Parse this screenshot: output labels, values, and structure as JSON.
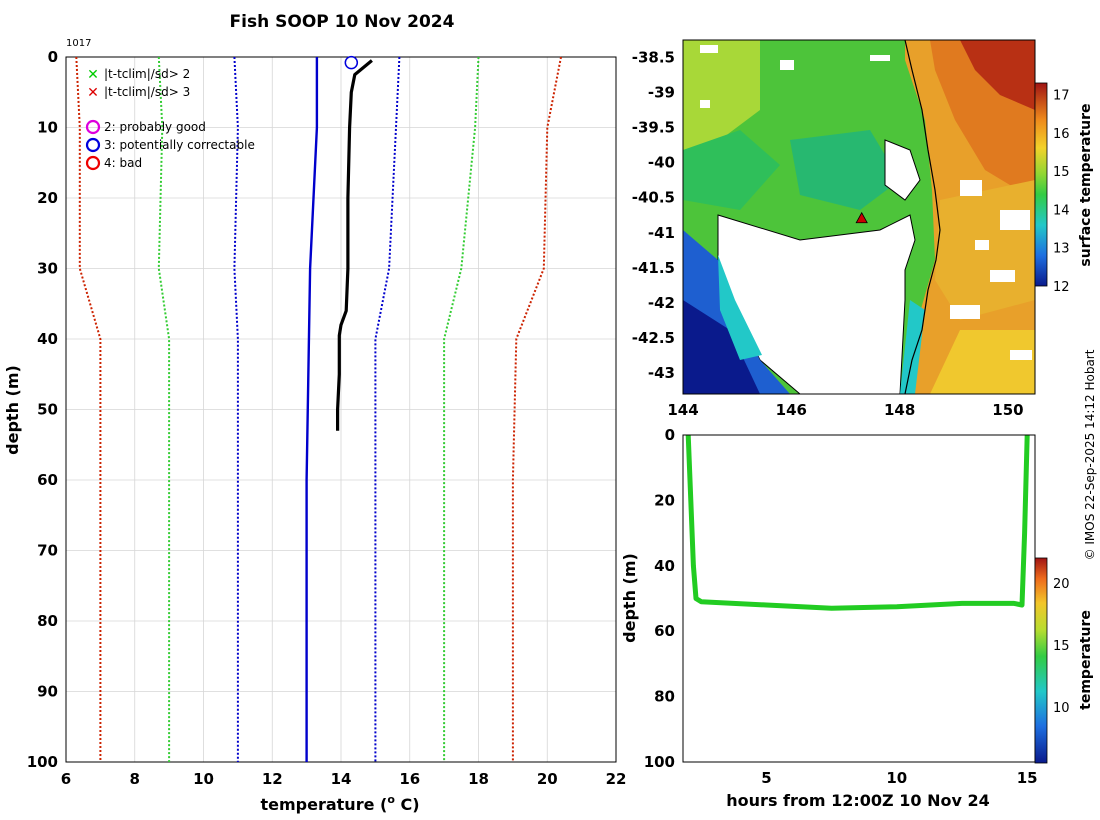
{
  "chart_data": [
    {
      "type": "line",
      "title": "Fish SOOP 10 Nov 2024",
      "id_label": "1017",
      "xlabel": "temperature (",
      "xlabel_sup": "o",
      "xlabel_unit": " C)",
      "ylabel": "depth (m)",
      "xlim": [
        6,
        22
      ],
      "ylim": [
        0,
        100
      ],
      "y_inverted": true,
      "xticks": [
        6,
        8,
        10,
        12,
        14,
        16,
        18,
        20,
        22
      ],
      "yticks": [
        0,
        10,
        20,
        30,
        40,
        50,
        60,
        70,
        80,
        90,
        100
      ],
      "grid": true,
      "legend_position": "top-left",
      "legend": [
        {
          "symbol": "x",
          "color": "#00cc00",
          "label": "|t-tclim|/sd> 2"
        },
        {
          "symbol": "x",
          "color": "#dd0000",
          "label": "|t-tclim|/sd> 3"
        },
        {
          "symbol": "o",
          "color": "#dd00dd",
          "label": "2: probably good"
        },
        {
          "symbol": "o",
          "color": "#0000dd",
          "label": "3: potentially correctable"
        },
        {
          "symbol": "o",
          "color": "#ee0000",
          "label": "4: bad"
        }
      ],
      "series": [
        {
          "name": "clim -3sd",
          "color": "#cc2200",
          "style": "dotted",
          "points": [
            [
              6.3,
              0
            ],
            [
              6.4,
              10
            ],
            [
              6.4,
              30
            ],
            [
              7.0,
              40
            ],
            [
              7.0,
              60
            ],
            [
              7.0,
              100
            ]
          ]
        },
        {
          "name": "clim -2sd",
          "color": "#33cc33",
          "style": "dotted",
          "points": [
            [
              8.7,
              0
            ],
            [
              8.8,
              10
            ],
            [
              8.7,
              30
            ],
            [
              9.0,
              40
            ],
            [
              9.0,
              60
            ],
            [
              9.0,
              100
            ]
          ]
        },
        {
          "name": "clim -1sd",
          "color": "#0000cc",
          "style": "dotted",
          "points": [
            [
              10.9,
              0
            ],
            [
              11.0,
              10
            ],
            [
              10.9,
              30
            ],
            [
              11.0,
              40
            ],
            [
              11.0,
              60
            ],
            [
              11.0,
              100
            ]
          ]
        },
        {
          "name": "clim mean",
          "color": "#0000cc",
          "style": "solid",
          "points": [
            [
              13.3,
              0
            ],
            [
              13.3,
              10
            ],
            [
              13.1,
              30
            ],
            [
              13.0,
              60
            ],
            [
              13.0,
              100
            ]
          ]
        },
        {
          "name": "clim +1sd",
          "color": "#0000cc",
          "style": "dotted",
          "points": [
            [
              15.7,
              0
            ],
            [
              15.6,
              10
            ],
            [
              15.4,
              30
            ],
            [
              15.0,
              40
            ],
            [
              15.0,
              60
            ],
            [
              15.0,
              100
            ]
          ]
        },
        {
          "name": "clim +2sd",
          "color": "#33cc33",
          "style": "dotted",
          "points": [
            [
              18.0,
              0
            ],
            [
              17.9,
              10
            ],
            [
              17.5,
              30
            ],
            [
              17.0,
              40
            ],
            [
              17.0,
              60
            ],
            [
              17.0,
              100
            ]
          ]
        },
        {
          "name": "clim +3sd",
          "color": "#cc2200",
          "style": "dotted",
          "points": [
            [
              20.4,
              0
            ],
            [
              20.0,
              10
            ],
            [
              19.9,
              30
            ],
            [
              19.1,
              40
            ],
            [
              19.0,
              60
            ],
            [
              19.0,
              100
            ]
          ]
        },
        {
          "name": "profile",
          "color": "#000000",
          "style": "solid",
          "points": [
            [
              14.9,
              0.5
            ],
            [
              14.4,
              2.5
            ],
            [
              14.3,
              5
            ],
            [
              14.25,
              10
            ],
            [
              14.2,
              20
            ],
            [
              14.2,
              30
            ],
            [
              14.15,
              36
            ],
            [
              14.0,
              38
            ],
            [
              13.95,
              39.5
            ],
            [
              13.95,
              45
            ],
            [
              13.9,
              50
            ],
            [
              13.9,
              53
            ]
          ]
        }
      ],
      "flag_point": {
        "temperature": 14.3,
        "depth": 0.8,
        "flag": "3: potentially correctable"
      }
    },
    {
      "type": "heatmap",
      "title": "",
      "xlim": [
        144,
        150.5
      ],
      "ylim": [
        -43.3,
        -38.25
      ],
      "xticks": [
        144,
        146,
        148,
        150
      ],
      "yticks": [
        -38.5,
        -39,
        -39.5,
        -40,
        -40.5,
        -41,
        -41.5,
        -42,
        -42.5,
        -43
      ],
      "colorbar": {
        "label": "surface temperature",
        "ticks": [
          12,
          13,
          14,
          15,
          16,
          17
        ],
        "range": [
          12,
          17.3
        ]
      },
      "marker": {
        "lon": 147.3,
        "lat": -40.8,
        "symbol": "triangle",
        "color": "#cc0000"
      }
    },
    {
      "type": "heatmap",
      "title": "",
      "xlabel": "hours from 12:00Z 10 Nov 24",
      "ylabel": "depth (m)",
      "xlim": [
        1.8,
        15.3
      ],
      "ylim": [
        0,
        100
      ],
      "y_inverted": true,
      "xticks": [
        5,
        10,
        15
      ],
      "yticks": [
        0,
        20,
        40,
        60,
        80,
        100
      ],
      "colorbar": {
        "label": "temperature",
        "ticks": [
          10,
          15,
          20
        ],
        "range": [
          5.5,
          22
        ]
      },
      "track": [
        [
          2.0,
          0
        ],
        [
          2.1,
          20
        ],
        [
          2.2,
          40
        ],
        [
          2.3,
          50
        ],
        [
          2.5,
          51
        ],
        [
          5,
          52
        ],
        [
          7.5,
          53
        ],
        [
          10,
          52.5
        ],
        [
          12.5,
          51.5
        ],
        [
          14.5,
          51.5
        ],
        [
          14.8,
          52
        ],
        [
          14.9,
          30
        ],
        [
          15.0,
          0
        ]
      ]
    }
  ],
  "credit": "© IMOS 22-Sep-2025 14:12 Hobart"
}
